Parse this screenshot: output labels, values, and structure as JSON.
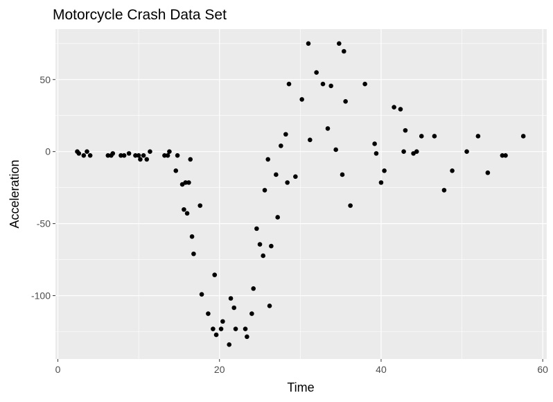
{
  "chart_data": {
    "type": "scatter",
    "title": "Motorcycle Crash Data Set",
    "xlabel": "Time",
    "ylabel": "Acceleration",
    "xlim": [
      -0.3,
      60.5
    ],
    "ylim": [
      -144,
      85
    ],
    "xticks": [
      0,
      20,
      40,
      60
    ],
    "xtick_labels": [
      "0",
      "20",
      "40",
      "60"
    ],
    "yticks": [
      -100,
      -50,
      0,
      50
    ],
    "ytick_labels": [
      "-100",
      "-50",
      "0",
      "50"
    ],
    "grid": true,
    "legend": "none",
    "colors": {
      "panel": "#EBEBEB",
      "grid": "#FFFFFF",
      "point": "#000000",
      "tick": "#333333"
    },
    "points": [
      {
        "x": 2.4,
        "y": 0.0
      },
      {
        "x": 2.6,
        "y": -1.3
      },
      {
        "x": 3.2,
        "y": -2.7
      },
      {
        "x": 3.6,
        "y": 0.0
      },
      {
        "x": 4.0,
        "y": -2.7
      },
      {
        "x": 6.2,
        "y": -2.7
      },
      {
        "x": 6.6,
        "y": -2.7
      },
      {
        "x": 6.8,
        "y": -1.3
      },
      {
        "x": 7.8,
        "y": -2.7
      },
      {
        "x": 8.2,
        "y": -2.7
      },
      {
        "x": 8.8,
        "y": -1.3
      },
      {
        "x": 9.6,
        "y": -2.7
      },
      {
        "x": 10.0,
        "y": -2.7
      },
      {
        "x": 10.2,
        "y": -5.4
      },
      {
        "x": 10.6,
        "y": -2.7
      },
      {
        "x": 11.0,
        "y": -5.4
      },
      {
        "x": 11.4,
        "y": 0.0
      },
      {
        "x": 13.2,
        "y": -2.7
      },
      {
        "x": 13.6,
        "y": -2.7
      },
      {
        "x": 13.8,
        "y": 0.0
      },
      {
        "x": 14.6,
        "y": -13.3
      },
      {
        "x": 14.8,
        "y": -2.7
      },
      {
        "x": 15.4,
        "y": -22.8
      },
      {
        "x": 15.6,
        "y": -40.2
      },
      {
        "x": 15.8,
        "y": -21.5
      },
      {
        "x": 16.0,
        "y": -42.9
      },
      {
        "x": 16.2,
        "y": -21.5
      },
      {
        "x": 16.4,
        "y": -5.4
      },
      {
        "x": 16.6,
        "y": -59.0
      },
      {
        "x": 16.8,
        "y": -71.0
      },
      {
        "x": 17.6,
        "y": -37.5
      },
      {
        "x": 17.8,
        "y": -99.1
      },
      {
        "x": 18.6,
        "y": -112.5
      },
      {
        "x": 19.2,
        "y": -123.1
      },
      {
        "x": 19.4,
        "y": -85.6
      },
      {
        "x": 19.6,
        "y": -127.2
      },
      {
        "x": 20.2,
        "y": -123.1
      },
      {
        "x": 20.4,
        "y": -117.9
      },
      {
        "x": 21.2,
        "y": -134.0
      },
      {
        "x": 21.4,
        "y": -101.9
      },
      {
        "x": 21.8,
        "y": -108.4
      },
      {
        "x": 22.0,
        "y": -123.1
      },
      {
        "x": 23.2,
        "y": -123.1
      },
      {
        "x": 23.4,
        "y": -128.5
      },
      {
        "x": 24.0,
        "y": -112.5
      },
      {
        "x": 24.2,
        "y": -95.1
      },
      {
        "x": 24.6,
        "y": -53.5
      },
      {
        "x": 25.0,
        "y": -64.4
      },
      {
        "x": 25.4,
        "y": -72.3
      },
      {
        "x": 25.6,
        "y": -26.8
      },
      {
        "x": 26.0,
        "y": -5.4
      },
      {
        "x": 26.2,
        "y": -107.1
      },
      {
        "x": 26.4,
        "y": -65.6
      },
      {
        "x": 27.0,
        "y": -16.0
      },
      {
        "x": 27.2,
        "y": -45.6
      },
      {
        "x": 27.6,
        "y": 4.0
      },
      {
        "x": 28.2,
        "y": 12.0
      },
      {
        "x": 28.4,
        "y": -21.5
      },
      {
        "x": 28.6,
        "y": 46.9
      },
      {
        "x": 29.4,
        "y": -17.4
      },
      {
        "x": 30.2,
        "y": 36.2
      },
      {
        "x": 31.0,
        "y": 75.0
      },
      {
        "x": 31.2,
        "y": 8.1
      },
      {
        "x": 32.0,
        "y": 54.9
      },
      {
        "x": 32.8,
        "y": 46.9
      },
      {
        "x": 33.4,
        "y": 16.0
      },
      {
        "x": 33.8,
        "y": 45.6
      },
      {
        "x": 34.4,
        "y": 1.3
      },
      {
        "x": 34.8,
        "y": 75.0
      },
      {
        "x": 35.2,
        "y": -16.0
      },
      {
        "x": 35.4,
        "y": 69.6
      },
      {
        "x": 35.6,
        "y": 34.8
      },
      {
        "x": 36.2,
        "y": -37.5
      },
      {
        "x": 38.0,
        "y": 46.9
      },
      {
        "x": 39.2,
        "y": 5.4
      },
      {
        "x": 39.4,
        "y": -1.3
      },
      {
        "x": 40.0,
        "y": -21.5
      },
      {
        "x": 40.4,
        "y": -13.3
      },
      {
        "x": 41.6,
        "y": 30.8
      },
      {
        "x": 42.4,
        "y": 29.4
      },
      {
        "x": 42.8,
        "y": 0.0
      },
      {
        "x": 43.0,
        "y": 14.7
      },
      {
        "x": 44.0,
        "y": -1.3
      },
      {
        "x": 44.4,
        "y": 0.0
      },
      {
        "x": 45.0,
        "y": 10.7
      },
      {
        "x": 46.6,
        "y": 10.7
      },
      {
        "x": 47.8,
        "y": -26.8
      },
      {
        "x": 48.8,
        "y": -13.3
      },
      {
        "x": 50.6,
        "y": 0.0
      },
      {
        "x": 52.0,
        "y": 10.7
      },
      {
        "x": 53.2,
        "y": -14.7
      },
      {
        "x": 55.0,
        "y": -2.7
      },
      {
        "x": 55.4,
        "y": -2.7
      },
      {
        "x": 57.6,
        "y": 10.7
      }
    ]
  }
}
